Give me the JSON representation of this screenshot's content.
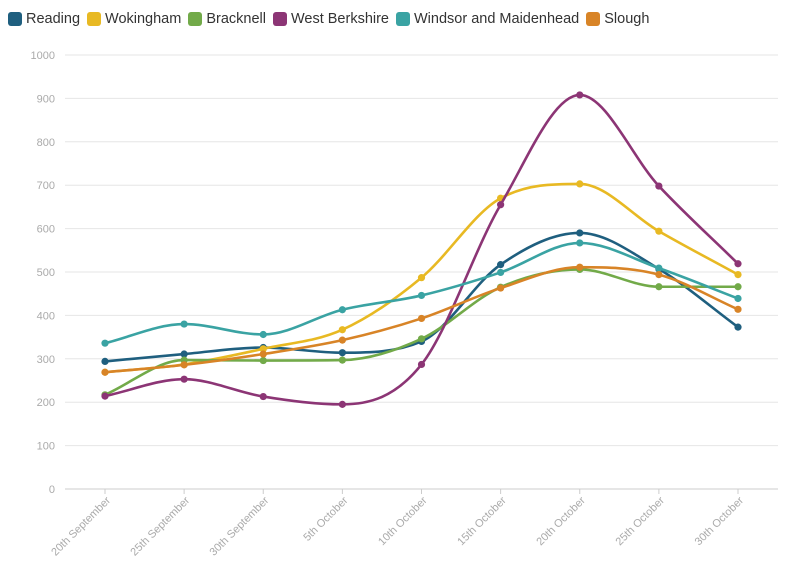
{
  "chart_data": {
    "type": "line",
    "title": "",
    "xlabel": "",
    "ylabel": "",
    "ylim": [
      0,
      1000
    ],
    "yticks": [
      0,
      100,
      200,
      300,
      400,
      500,
      600,
      700,
      800,
      900,
      1000
    ],
    "grid": true,
    "legend_position": "top-left",
    "smooth": true,
    "categories": [
      "20th September",
      "25th September",
      "30th September",
      "5th October",
      "10th October",
      "15th October",
      "20th October",
      "25th October",
      "30th October"
    ],
    "series": [
      {
        "name": "Reading",
        "color": "#1f5f7f",
        "values": [
          294,
          311,
          326,
          314,
          340,
          517,
          590,
          507,
          373
        ]
      },
      {
        "name": "Wokingham",
        "color": "#e8b923",
        "values": [
          269,
          287,
          323,
          367,
          487,
          670,
          703,
          594,
          494
        ]
      },
      {
        "name": "Bracknell",
        "color": "#72aa49",
        "values": [
          217,
          297,
          296,
          297,
          346,
          465,
          506,
          466,
          466
        ]
      },
      {
        "name": "West Berkshire",
        "color": "#8c3575",
        "values": [
          214,
          253,
          213,
          195,
          287,
          655,
          908,
          698,
          519
        ]
      },
      {
        "name": "Windsor and Maidenhead",
        "color": "#3aa3a3",
        "values": [
          336,
          380,
          356,
          413,
          446,
          499,
          567,
          509,
          439
        ]
      },
      {
        "name": "Slough",
        "color": "#d88427",
        "values": [
          269,
          286,
          311,
          343,
          393,
          463,
          511,
          494,
          414
        ]
      }
    ]
  }
}
